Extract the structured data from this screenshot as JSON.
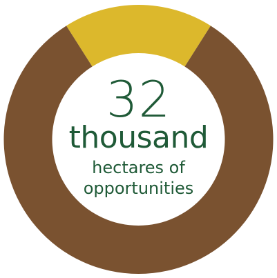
{
  "chart_data": {
    "type": "pie",
    "donut": true,
    "segments": [
      {
        "value": 0.18,
        "color": "#dcb82c"
      },
      {
        "value": 0.82,
        "color": "#7a5230"
      }
    ],
    "center": {
      "number": "32",
      "unit": "thousand",
      "caption_line1": "hectares of",
      "caption_line2": "opportunities"
    }
  },
  "colors": {
    "text": "#1f5a37",
    "background": "#ffffff"
  }
}
